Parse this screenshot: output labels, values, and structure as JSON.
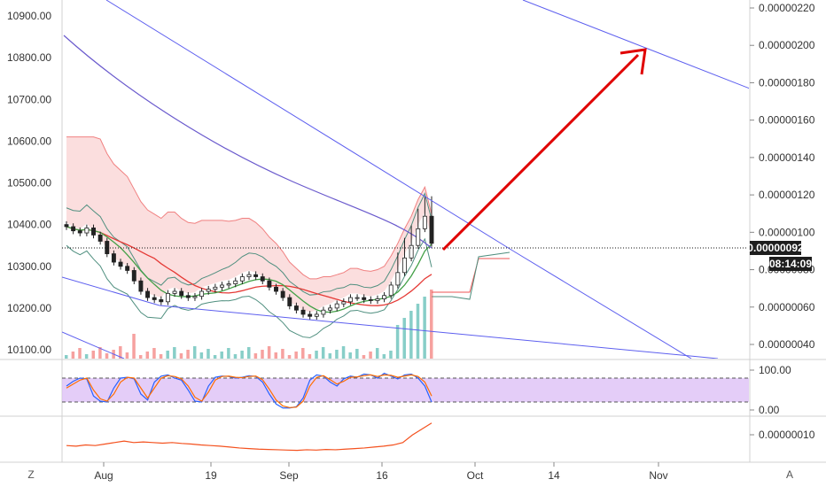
{
  "chart_data": [
    {
      "type": "candlestick",
      "panel": "main",
      "x_ticks": [
        "Aug",
        "19",
        "Sep",
        "16",
        "Oct",
        "14",
        "Nov"
      ],
      "left_axis": {
        "ticks": [
          "10100.00",
          "10200.00",
          "10300.00",
          "10400.00",
          "10500.00",
          "10600.00",
          "10700.00",
          "10800.00",
          "10900.00"
        ],
        "ylim": [
          10080,
          10930
        ]
      },
      "right_axis": {
        "ticks": [
          "0.00000040",
          "0.00000060",
          "0.00000080",
          "0.00000100",
          "0.00000120",
          "0.00000140",
          "0.00000160",
          "0.00000180",
          "0.00000200",
          "0.00000220"
        ],
        "ylim": [
          2.8e-07,
          2.25e-06
        ]
      },
      "last_price": "0.00000092",
      "countdown": "08:14:09",
      "close_series": [
        10395,
        10385,
        10380,
        10392,
        10375,
        10360,
        10330,
        10310,
        10300,
        10290,
        10265,
        10240,
        10225,
        10220,
        10215,
        10235,
        10240,
        10230,
        10225,
        10228,
        10240,
        10245,
        10250,
        10255,
        10258,
        10265,
        10275,
        10280,
        10275,
        10265,
        10250,
        10240,
        10225,
        10205,
        10195,
        10185,
        10180,
        10185,
        10195,
        10200,
        10210,
        10215,
        10225,
        10225,
        10220,
        10218,
        10222,
        10230,
        10255,
        10285,
        10320,
        10350,
        10390,
        10420,
        10355
      ],
      "colors": {
        "up": "#26a69a",
        "down": "#ef5350",
        "trendline": "#5d5fef",
        "ma_red": "#e53935",
        "ma_green": "#43a047",
        "ma_purple": "#6a5acd",
        "cloud": "#f8c8c8",
        "projection_arrow": "#e00000"
      }
    },
    {
      "type": "line",
      "panel": "stoch_rsi",
      "right_ticks": [
        "100.00",
        "0.00"
      ],
      "ylim": [
        0,
        100
      ],
      "band": [
        20,
        80
      ],
      "series": [
        {
          "values": [
            60,
            72,
            80,
            78,
            35,
            22,
            20,
            55,
            80,
            82,
            78,
            40,
            25,
            70,
            85,
            88,
            80,
            75,
            50,
            22,
            20,
            60,
            82,
            85,
            84,
            80,
            82,
            86,
            84,
            70,
            40,
            15,
            5,
            5,
            8,
            30,
            75,
            88,
            85,
            70,
            60,
            78,
            85,
            82,
            90,
            88,
            80,
            92,
            85,
            78,
            88,
            90,
            80,
            60,
            20
          ]
        },
        {
          "values": [
            55,
            65,
            75,
            80,
            50,
            28,
            22,
            40,
            70,
            82,
            80,
            55,
            30,
            55,
            80,
            86,
            84,
            78,
            60,
            32,
            22,
            45,
            75,
            84,
            85,
            82,
            81,
            84,
            85,
            76,
            52,
            25,
            10,
            6,
            7,
            22,
            60,
            82,
            86,
            76,
            65,
            72,
            82,
            83,
            86,
            88,
            84,
            88,
            87,
            82,
            85,
            88,
            84,
            70,
            35
          ]
        }
      ]
    },
    {
      "type": "line",
      "panel": "lower",
      "right_ticks": [
        "0.00000010"
      ],
      "series": [
        {
          "values": [
            0.2,
            0.18,
            0.22,
            0.2,
            0.25,
            0.3,
            0.35,
            0.3,
            0.32,
            0.3,
            0.28,
            0.3,
            0.27,
            0.25,
            0.22,
            0.2,
            0.18,
            0.15,
            0.12,
            0.1,
            0.08,
            0.07,
            0.06,
            0.05,
            0.04,
            0.06,
            0.05,
            0.07,
            0.06,
            0.08,
            0.1,
            0.12,
            0.15,
            0.18,
            0.22,
            0.3,
            0.55,
            0.75,
            0.95
          ]
        }
      ]
    }
  ],
  "ui": {
    "corner_left": "Z",
    "corner_right": "A"
  }
}
